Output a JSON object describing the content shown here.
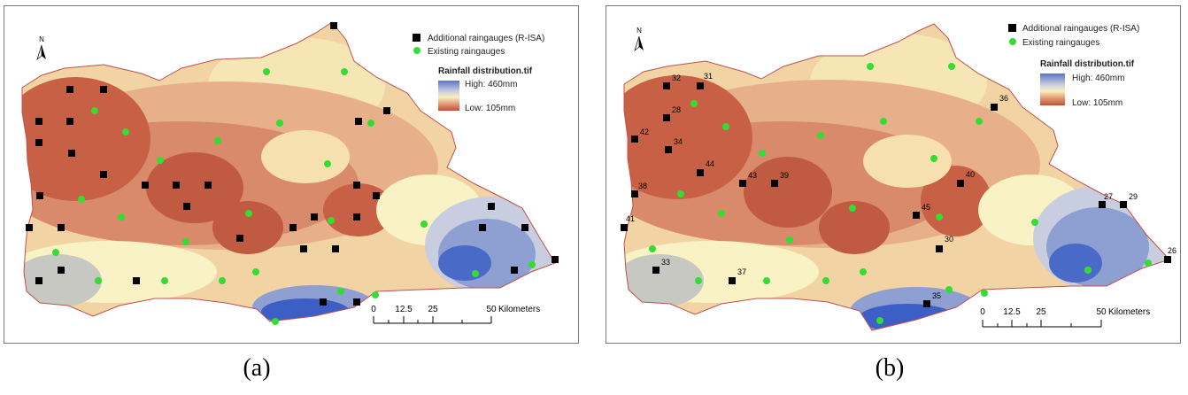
{
  "panels": [
    {
      "id": "a",
      "caption": "(a)",
      "legend": {
        "additional_label": "Additional raingauges (R-ISA)",
        "existing_label": "Existing raingauges",
        "raster_title": "Rainfall distribution.tif",
        "high_label": "High: 460mm",
        "low_label": "Low: 105mm"
      },
      "north_label": "N",
      "scalebar": {
        "ticks": [
          "0",
          "12.5",
          "25",
          "50"
        ],
        "unit": "Kilometers"
      },
      "station_labels": []
    },
    {
      "id": "b",
      "caption": "(b)",
      "legend": {
        "additional_label": "Additional raingauges (R-ISA)",
        "existing_label": "Existing raingauges",
        "raster_title": "Rainfall distribution.tif",
        "high_label": "High: 460mm",
        "low_label": "Low: 105mm"
      },
      "north_label": "N",
      "scalebar": {
        "ticks": [
          "0",
          "12.5",
          "25",
          "50"
        ],
        "unit": "Kilometers"
      },
      "station_labels": [
        "32",
        "31",
        "28",
        "42",
        "34",
        "44",
        "43",
        "39",
        "36",
        "40",
        "38",
        "41",
        "45",
        "27",
        "29",
        "30",
        "33",
        "37",
        "35",
        "26"
      ]
    }
  ],
  "colors": {
    "dry_high": "#b84a35",
    "dry_mid": "#d98a6a",
    "neutral": "#f8f2c4",
    "wet_mid": "#9aa8d2",
    "wet_high": "#3b5fc4",
    "additional_marker": "#000000",
    "existing_marker": "#33dd33",
    "boundary": "#c0504d"
  }
}
